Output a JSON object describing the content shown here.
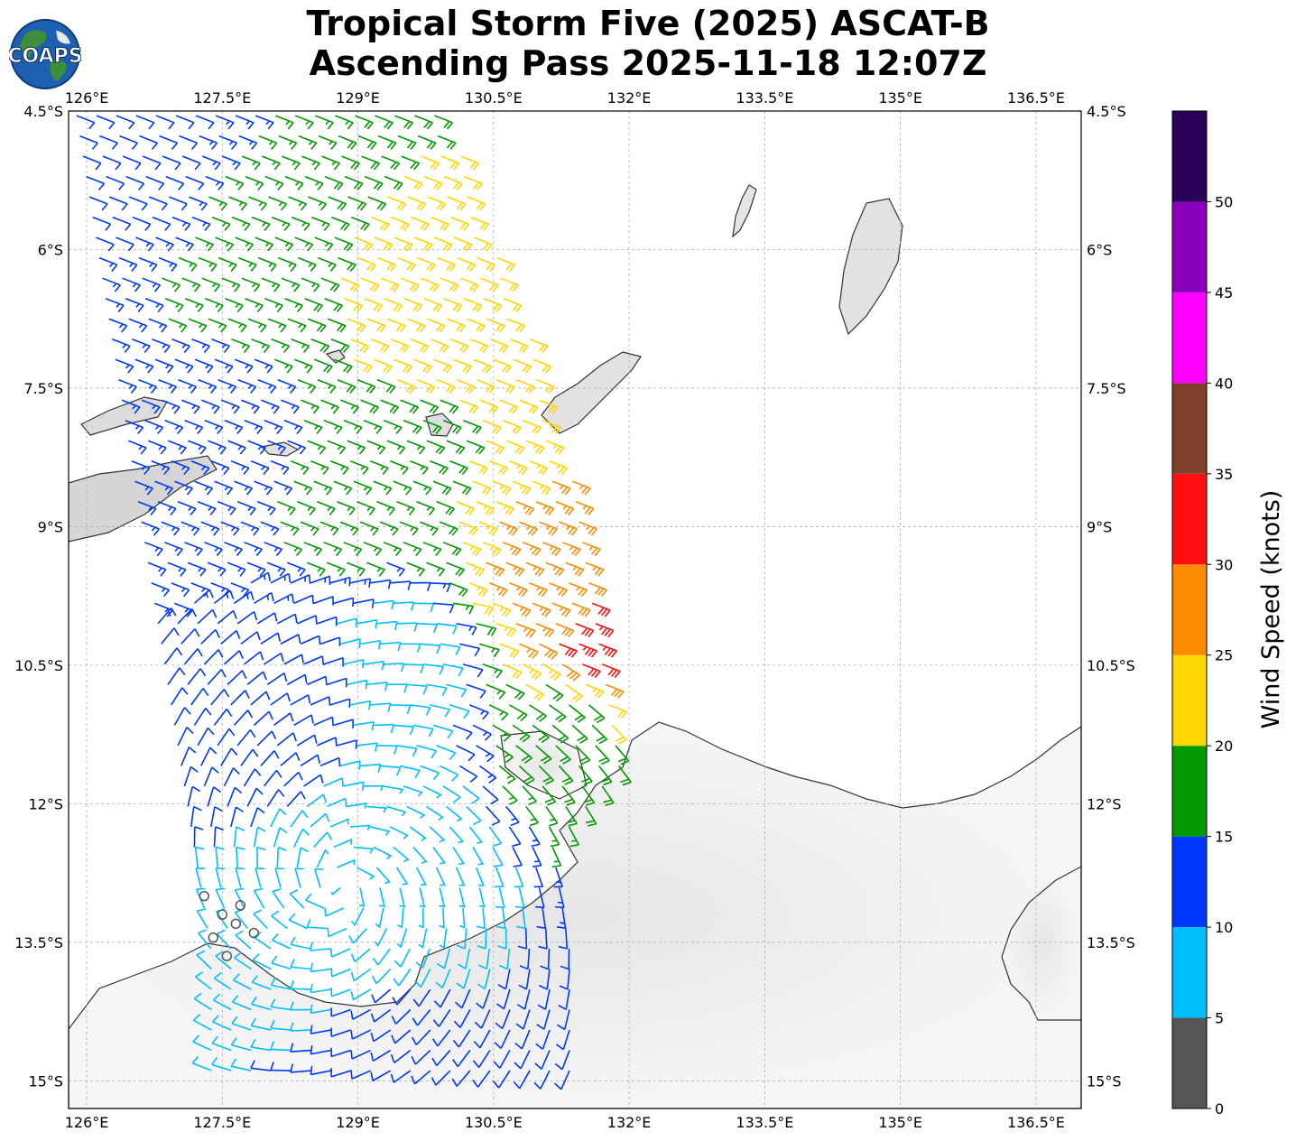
{
  "title": {
    "line1": "Tropical Storm Five (2025) ASCAT-B",
    "line2": "Ascending Pass 2025-11-18 12:07Z"
  },
  "logo": {
    "text": "COAPS",
    "icon": "globe-icon"
  },
  "map": {
    "lon_range": [
      125.8,
      137.0
    ],
    "lat_range": [
      -15.3,
      -4.5
    ],
    "gridlines": true,
    "lon_ticks": [
      126,
      127.5,
      129,
      130.5,
      132,
      133.5,
      135,
      136.5
    ],
    "lon_tick_labels": [
      "126°E",
      "127.5°E",
      "129°E",
      "130.5°E",
      "132°E",
      "133.5°E",
      "135°E",
      "136.5°E"
    ],
    "lat_ticks": [
      -4.5,
      -6,
      -7.5,
      -9,
      -10.5,
      -12,
      -13.5,
      -15
    ],
    "lat_tick_labels": [
      "4.5°S",
      "6°S",
      "7.5°S",
      "9°S",
      "10.5°S",
      "12°S",
      "13.5°S",
      "15°S"
    ]
  },
  "colorbar": {
    "label": "Wind Speed (knots)",
    "bounds": [
      0,
      5,
      10,
      15,
      20,
      25,
      30,
      35,
      40,
      45,
      50,
      55
    ],
    "tick_labels": [
      "0",
      "5",
      "10",
      "15",
      "20",
      "25",
      "30",
      "35",
      "40",
      "45",
      "50"
    ],
    "colors": [
      "#555555",
      "#00bfff",
      "#0037ff",
      "#009900",
      "#ffd700",
      "#ff8c00",
      "#ff0f0f",
      "#7f3f2a",
      "#ff00ff",
      "#8800bb",
      "#2a0058"
    ]
  },
  "chart_data": {
    "type": "wind-barbs",
    "units": "knots",
    "center_lon": 128.8,
    "center_lat": -12.9,
    "swath_west_edge": [
      [
        125.8,
        -4.5
      ],
      [
        126.5,
        -8.8
      ],
      [
        127.3,
        -13.6
      ]
    ],
    "swath_east_edge": [
      [
        130.0,
        -4.5
      ],
      [
        131.2,
        -7.5
      ],
      [
        132.1,
        -11.5
      ],
      [
        131.4,
        -12.2
      ]
    ],
    "wind_field_samples": [
      {
        "lon": 126.5,
        "lat": -5.0,
        "speed": 12
      },
      {
        "lon": 128.0,
        "lat": -6.0,
        "speed": 17
      },
      {
        "lon": 129.5,
        "lat": -6.5,
        "speed": 22
      },
      {
        "lon": 127.5,
        "lat": -8.0,
        "speed": 13
      },
      {
        "lon": 129.0,
        "lat": -8.5,
        "speed": 17
      },
      {
        "lon": 131.0,
        "lat": -9.5,
        "speed": 26
      },
      {
        "lon": 131.6,
        "lat": -10.3,
        "speed": 33
      },
      {
        "lon": 131.3,
        "lat": -11.0,
        "speed": 18
      },
      {
        "lon": 129.5,
        "lat": -10.5,
        "speed": 8
      },
      {
        "lon": 128.0,
        "lat": -11.0,
        "speed": 12
      },
      {
        "lon": 129.5,
        "lat": -12.5,
        "speed": 6
      },
      {
        "lon": 128.5,
        "lat": -13.8,
        "speed": 8
      },
      {
        "lon": 129.2,
        "lat": -14.7,
        "speed": 12
      }
    ]
  }
}
